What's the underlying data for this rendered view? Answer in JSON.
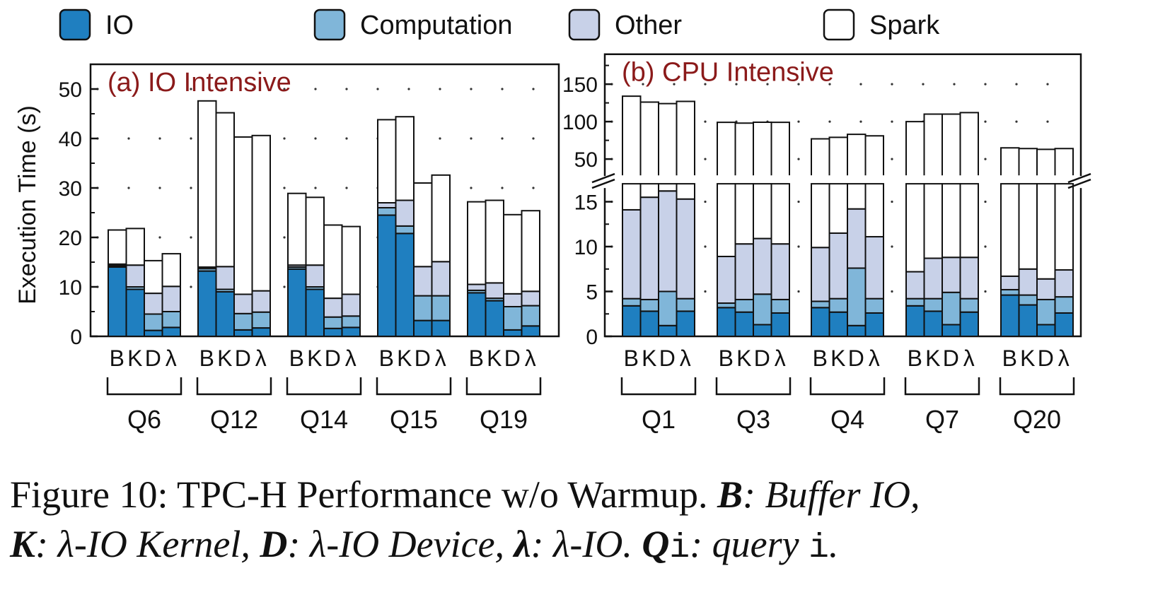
{
  "legend": [
    {
      "name": "IO",
      "color": "#1f7fc0"
    },
    {
      "name": "Computation",
      "color": "#80b6d9"
    },
    {
      "name": "Other",
      "color": "#c8d1e8"
    },
    {
      "name": "Spark",
      "color": "#ffffff"
    }
  ],
  "ylabel": "Execution Time (s)",
  "bar_letters": [
    "B",
    "K",
    "D",
    "λ"
  ],
  "caption": {
    "lead": "Figure 10: TPC-H Performance w/o Warmup. ",
    "b_key": "B",
    "b_text": ": Buffer IO,",
    "k_key": "K",
    "k_text": ": λ-IO Kernel, ",
    "d_key": "D",
    "d_text": ": λ-IO Device, ",
    "l_key": "λ",
    "l_text": ": λ-IO. ",
    "q_key": "Q",
    "q_var": "i",
    "q_text": ": query ",
    "q_var2": "i",
    "end": "."
  },
  "chart_data": [
    {
      "type": "bar",
      "stacked": true,
      "title": "(a) IO Intensive",
      "ylabel": "Execution Time (s)",
      "ylim": [
        0,
        55
      ],
      "yticks": [
        0,
        10,
        20,
        30,
        40,
        50
      ],
      "grid": "dotted horizontal",
      "groups": [
        "Q6",
        "Q12",
        "Q14",
        "Q15",
        "Q19"
      ],
      "bars_per_group": [
        "B",
        "K",
        "D",
        "λ"
      ],
      "series": [
        {
          "name": "IO",
          "values": [
            [
              14,
              9.5,
              1.2,
              1.8
            ],
            [
              13.2,
              9,
              1.3,
              1.7
            ],
            [
              13.6,
              9.5,
              1.6,
              1.8
            ],
            [
              24.5,
              20.8,
              3.2,
              3.2
            ],
            [
              8.8,
              7.2,
              1.3,
              2.1
            ]
          ]
        },
        {
          "name": "Computation",
          "values": [
            [
              0.3,
              0.5,
              3.3,
              3.2
            ],
            [
              0.5,
              0.5,
              3.3,
              3.2
            ],
            [
              0.4,
              0.5,
              2.3,
              2.3
            ],
            [
              1.5,
              1.5,
              5,
              5
            ],
            [
              0.5,
              0.5,
              4.7,
              4.1
            ]
          ]
        },
        {
          "name": "Other",
          "values": [
            [
              0.3,
              4.4,
              4.2,
              5.1
            ],
            [
              0.3,
              4.6,
              3.9,
              4.3
            ],
            [
              0.4,
              4.4,
              3.8,
              4.4
            ],
            [
              1,
              5.2,
              5.9,
              6.9
            ],
            [
              1.2,
              3.1,
              2.6,
              2.9
            ]
          ]
        },
        {
          "name": "Spark",
          "values": [
            [
              6.9,
              7.4,
              6.6,
              6.6
            ],
            [
              33.6,
              31.1,
              31.8,
              31.4
            ],
            [
              14.5,
              13.7,
              14.8,
              13.7
            ],
            [
              16.8,
              16.9,
              16.9,
              17.5
            ],
            [
              16.7,
              16.7,
              16,
              16.3
            ]
          ]
        }
      ]
    },
    {
      "type": "bar",
      "stacked": true,
      "broken_axis": true,
      "title": "(b) CPU Intensive",
      "ylim_lower": [
        0,
        17
      ],
      "yticks_lower": [
        0,
        5,
        10,
        15
      ],
      "ylim_upper": [
        17,
        190
      ],
      "yticks_upper": [
        50,
        100,
        150
      ],
      "grid": "dotted horizontal",
      "groups": [
        "Q1",
        "Q3",
        "Q4",
        "Q7",
        "Q20"
      ],
      "bars_per_group": [
        "B",
        "K",
        "D",
        "λ"
      ],
      "series": [
        {
          "name": "IO",
          "values": [
            [
              3.4,
              2.8,
              1.2,
              2.8
            ],
            [
              3.2,
              2.7,
              1.3,
              2.6
            ],
            [
              3.2,
              2.7,
              1.2,
              2.6
            ],
            [
              3.4,
              2.8,
              1.3,
              2.7
            ],
            [
              4.6,
              3.5,
              1.3,
              2.6
            ]
          ]
        },
        {
          "name": "Computation",
          "values": [
            [
              0.8,
              1.3,
              3.8,
              1.4
            ],
            [
              0.5,
              1.4,
              3.4,
              1.5
            ],
            [
              0.7,
              1.5,
              6.4,
              1.6
            ],
            [
              0.8,
              1.4,
              3.6,
              1.5
            ],
            [
              0.6,
              1.1,
              2.8,
              1.8
            ]
          ]
        },
        {
          "name": "Other",
          "values": [
            [
              9.9,
              11.4,
              11.2,
              11.1
            ],
            [
              5.2,
              6.2,
              6.2,
              6.2
            ],
            [
              6,
              7.3,
              6.6,
              6.9
            ],
            [
              3,
              4.5,
              3.9,
              4.6
            ],
            [
              1.5,
              2.9,
              2.3,
              3
            ]
          ]
        },
        {
          "name": "Spark",
          "values": [
            [
              119.9,
              110.5,
              107.8,
              111.7
            ],
            [
              90.1,
              87.7,
              88.3,
              88.7
            ],
            [
              67.1,
              67.5,
              68.8,
              69.9
            ],
            [
              92.8,
              101.3,
              101.2,
              103.2
            ],
            [
              58.3,
              56.5,
              56.6,
              56.6
            ]
          ]
        }
      ]
    }
  ]
}
